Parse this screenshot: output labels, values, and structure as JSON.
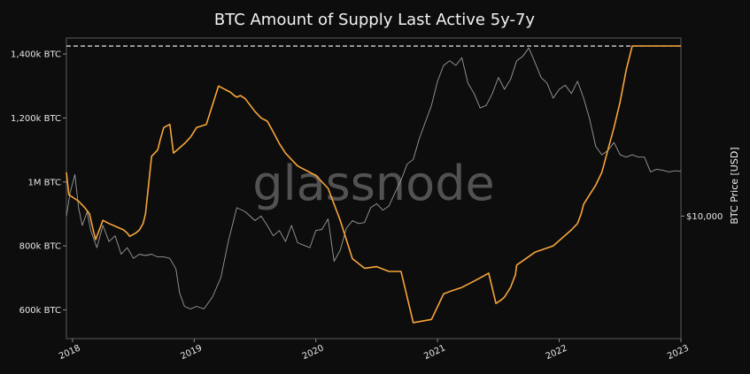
{
  "chart_data": {
    "type": "line",
    "title": "BTC Amount of Supply Last Active 5y-7y",
    "watermark": "glassnode",
    "ylabel_right": "BTC Price [USD]",
    "y_ticks_left": [
      {
        "value": 1400000,
        "label": "1,400k BTC"
      },
      {
        "value": 1200000,
        "label": "1,200k BTC"
      },
      {
        "value": 1000000,
        "label": "1M BTC"
      },
      {
        "value": 800000,
        "label": "800k BTC"
      },
      {
        "value": 600000,
        "label": "600k BTC"
      }
    ],
    "ylim_left": [
      510000,
      1450000
    ],
    "y_ticks_right": [
      {
        "value": 10000,
        "label": "$10,000"
      }
    ],
    "ylim_right_log": [
      2500,
      75000
    ],
    "x_ticks": [
      "2018",
      "2019",
      "2020",
      "2021",
      "2022",
      "2023"
    ],
    "xlim": [
      2017.95,
      2023.0
    ],
    "reference_line": {
      "value": 1425000,
      "style": "dashed",
      "color": "#ffffff"
    },
    "colors": {
      "supply": "#f7a53b",
      "price": "#9a9a9a",
      "background": "#0d0d0d"
    },
    "series": [
      {
        "axis": "left",
        "color": "#f7a53b",
        "x": [
          2017.95,
          2017.97,
          2018.05,
          2018.1,
          2018.14,
          2018.17,
          2018.19,
          2018.2,
          2018.25,
          2018.3,
          2018.42,
          2018.45,
          2018.47,
          2018.52,
          2018.55,
          2018.58,
          2018.6,
          2018.65,
          2018.7,
          2018.72,
          2018.75,
          2018.8,
          2018.83,
          2018.86,
          2018.92,
          2018.97,
          2019.02,
          2019.1,
          2019.2,
          2019.3,
          2019.33,
          2019.35,
          2019.38,
          2019.42,
          2019.5,
          2019.55,
          2019.6,
          2019.63,
          2019.7,
          2019.75,
          2019.8,
          2019.85,
          2019.9,
          2020.0,
          2020.1,
          2020.2,
          2020.3,
          2020.4,
          2020.5,
          2020.6,
          2020.7,
          2020.8,
          2020.95,
          2021.05,
          2021.12,
          2021.2,
          2021.3,
          2021.35,
          2021.42,
          2021.48,
          2021.52,
          2021.55,
          2021.6,
          2021.63,
          2021.64,
          2021.65,
          2021.8,
          2021.95,
          2022.1,
          2022.15,
          2022.18,
          2022.2,
          2022.25,
          2022.3,
          2022.35,
          2022.4,
          2022.45,
          2022.5,
          2022.55,
          2022.6,
          2022.65,
          2022.7,
          2022.75,
          2022.8,
          2022.85,
          2022.9,
          2022.95,
          2023.0
        ],
        "values": [
          1030000,
          960000,
          940000,
          920000,
          900000,
          850000,
          820000,
          830000,
          880000,
          870000,
          850000,
          840000,
          830000,
          840000,
          850000,
          870000,
          900000,
          1080000,
          1100000,
          1130000,
          1170000,
          1180000,
          1090000,
          1100000,
          1120000,
          1140000,
          1170000,
          1180000,
          1300000,
          1280000,
          1270000,
          1265000,
          1270000,
          1260000,
          1220000,
          1200000,
          1190000,
          1170000,
          1120000,
          1090000,
          1070000,
          1050000,
          1040000,
          1020000,
          980000,
          880000,
          760000,
          730000,
          735000,
          720000,
          720000,
          560000,
          570000,
          650000,
          660000,
          670000,
          690000,
          700000,
          715000,
          620000,
          630000,
          640000,
          670000,
          700000,
          710000,
          740000,
          780000,
          800000,
          850000,
          870000,
          900000,
          930000,
          960000,
          990000,
          1030000,
          1100000,
          1170000,
          1250000,
          1350000,
          1425000,
          1425000,
          1425000,
          1425000,
          1425000,
          1425000,
          1425000,
          1425000,
          1425000
        ]
      },
      {
        "axis": "right_log",
        "color": "#9a9a9a",
        "x": [
          2017.95,
          2017.98,
          2018.02,
          2018.05,
          2018.08,
          2018.12,
          2018.15,
          2018.2,
          2018.25,
          2018.3,
          2018.35,
          2018.4,
          2018.45,
          2018.5,
          2018.55,
          2018.6,
          2018.65,
          2018.7,
          2018.75,
          2018.8,
          2018.85,
          2018.88,
          2018.92,
          2018.97,
          2019.02,
          2019.08,
          2019.15,
          2019.22,
          2019.28,
          2019.35,
          2019.42,
          2019.5,
          2019.55,
          2019.6,
          2019.65,
          2019.7,
          2019.75,
          2019.8,
          2019.85,
          2019.9,
          2019.95,
          2020.0,
          2020.05,
          2020.1,
          2020.15,
          2020.2,
          2020.25,
          2020.3,
          2020.35,
          2020.4,
          2020.45,
          2020.5,
          2020.55,
          2020.6,
          2020.65,
          2020.7,
          2020.75,
          2020.8,
          2020.85,
          2020.9,
          2020.95,
          2021.0,
          2021.05,
          2021.1,
          2021.15,
          2021.2,
          2021.25,
          2021.3,
          2021.35,
          2021.4,
          2021.45,
          2021.5,
          2021.55,
          2021.6,
          2021.65,
          2021.7,
          2021.75,
          2021.8,
          2021.85,
          2021.9,
          2021.95,
          2022.0,
          2022.05,
          2022.1,
          2022.15,
          2022.2,
          2022.25,
          2022.3,
          2022.35,
          2022.4,
          2022.45,
          2022.5,
          2022.55,
          2022.6,
          2022.65,
          2022.7,
          2022.75,
          2022.8,
          2022.85,
          2022.9,
          2022.95,
          2023.0
        ],
        "values": [
          10000,
          13000,
          16000,
          11000,
          9000,
          10500,
          8500,
          7000,
          9000,
          7500,
          8000,
          6500,
          7000,
          6200,
          6500,
          6400,
          6500,
          6300,
          6300,
          6200,
          5500,
          4200,
          3600,
          3500,
          3600,
          3500,
          4000,
          5000,
          7500,
          11000,
          10500,
          9500,
          10000,
          9000,
          8000,
          8500,
          7500,
          9000,
          7400,
          7200,
          7000,
          8500,
          8600,
          9700,
          6000,
          6800,
          8700,
          9500,
          9200,
          9300,
          11000,
          11500,
          10700,
          11200,
          13000,
          15000,
          18000,
          19000,
          24000,
          29000,
          35000,
          46000,
          55000,
          58000,
          55000,
          60000,
          45000,
          40000,
          34000,
          35000,
          40000,
          48000,
          42000,
          47000,
          58000,
          61000,
          67000,
          57000,
          48000,
          45000,
          38000,
          42000,
          44000,
          40000,
          46000,
          38000,
          30000,
          22000,
          20000,
          21000,
          23000,
          20000,
          19500,
          20000,
          19500,
          19500,
          16500,
          17000,
          16800,
          16500,
          16700,
          16600
        ]
      }
    ]
  }
}
